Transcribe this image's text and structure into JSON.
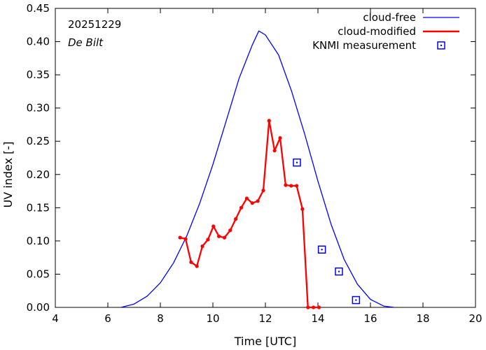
{
  "chart_data": {
    "type": "line",
    "title": "",
    "date": "20251229",
    "location": "De Bilt",
    "xlabel": "Time  [UTC]",
    "ylabel": "UV index  [-]",
    "xlim": [
      4,
      20
    ],
    "ylim": [
      0,
      0.45
    ],
    "x_ticks": [
      4,
      6,
      8,
      10,
      12,
      14,
      16,
      18,
      20
    ],
    "x_tick_labels": [
      "4",
      "6",
      "8",
      "10",
      "12",
      "14",
      "16",
      "18",
      "20"
    ],
    "y_ticks": [
      0,
      0.05,
      0.1,
      0.15,
      0.2,
      0.25,
      0.3,
      0.35,
      0.4,
      0.45
    ],
    "y_tick_labels": [
      "0.00",
      "0.05",
      "0.10",
      "0.15",
      "0.20",
      "0.25",
      "0.30",
      "0.35",
      "0.40",
      "0.45"
    ],
    "grid": false,
    "legend_position": "top-right",
    "series": [
      {
        "name": "cloud-free",
        "style": "line",
        "color": "#0000ff",
        "x": [
          6.5,
          7.0,
          7.5,
          8.0,
          8.5,
          9.0,
          9.5,
          10.0,
          10.5,
          11.0,
          11.5,
          11.75,
          12.0,
          12.5,
          13.0,
          13.5,
          14.0,
          14.5,
          15.0,
          15.5,
          16.0,
          16.5,
          16.9
        ],
        "y": [
          0.0,
          0.005,
          0.017,
          0.037,
          0.067,
          0.107,
          0.157,
          0.215,
          0.28,
          0.345,
          0.395,
          0.416,
          0.41,
          0.38,
          0.325,
          0.26,
          0.19,
          0.125,
          0.072,
          0.035,
          0.012,
          0.002,
          0.0
        ]
      },
      {
        "name": "cloud-modified",
        "style": "line-with-points",
        "color": "#ff0000",
        "x": [
          8.75,
          8.96,
          9.17,
          9.39,
          9.6,
          9.81,
          10.02,
          10.23,
          10.44,
          10.66,
          10.87,
          11.08,
          11.29,
          11.5,
          11.71,
          11.92,
          12.14,
          12.35,
          12.56,
          12.77,
          12.98,
          13.19,
          13.41,
          13.62,
          13.83,
          14.04
        ],
        "y": [
          0.105,
          0.103,
          0.068,
          0.062,
          0.092,
          0.102,
          0.122,
          0.107,
          0.105,
          0.116,
          0.133,
          0.15,
          0.164,
          0.157,
          0.16,
          0.176,
          0.281,
          0.236,
          0.255,
          0.184,
          0.183,
          0.183,
          0.148,
          0.0,
          0.0,
          0.0
        ]
      },
      {
        "name": "KNMI measurement",
        "style": "markers",
        "color": "#0000ff",
        "x": [
          13.2,
          14.15,
          14.8,
          15.45
        ],
        "y": [
          0.218,
          0.087,
          0.054,
          0.011
        ]
      }
    ]
  }
}
